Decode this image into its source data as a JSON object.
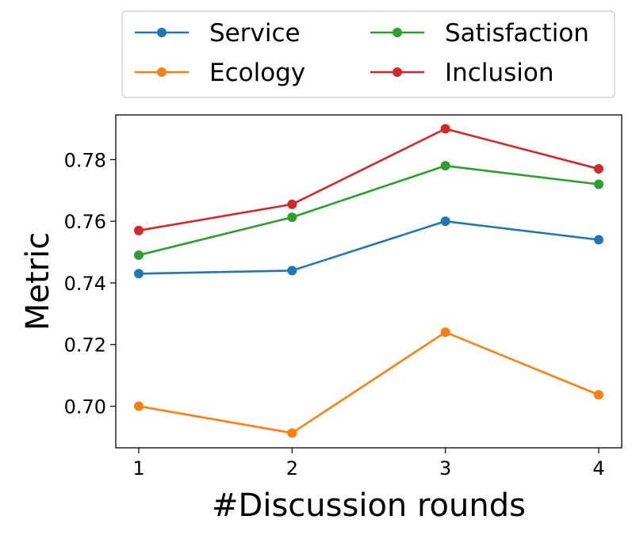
{
  "chart_data": {
    "type": "line",
    "x": [
      1,
      2,
      3,
      4
    ],
    "xticks": [
      "1",
      "2",
      "3",
      "4"
    ],
    "yticks": [
      "0.70",
      "0.72",
      "0.74",
      "0.76",
      "0.78"
    ],
    "xlabel": "#Discussion rounds",
    "ylabel": "Metric",
    "xlim": [
      0.85,
      4.15
    ],
    "ylim": [
      0.6865,
      0.7945
    ],
    "grid": false,
    "legend_position": "top",
    "series": [
      {
        "name": "Service",
        "color": "#1f77b4",
        "values": [
          0.743,
          0.744,
          0.76,
          0.754
        ]
      },
      {
        "name": "Ecology",
        "color": "#ff7f0e",
        "values": [
          0.7,
          0.6913,
          0.724,
          0.7037
        ]
      },
      {
        "name": "Satisfaction",
        "color": "#2ca02c",
        "values": [
          0.749,
          0.7613,
          0.778,
          0.772
        ]
      },
      {
        "name": "Inclusion",
        "color": "#d62728",
        "values": [
          0.757,
          0.7655,
          0.79,
          0.777
        ]
      }
    ]
  }
}
